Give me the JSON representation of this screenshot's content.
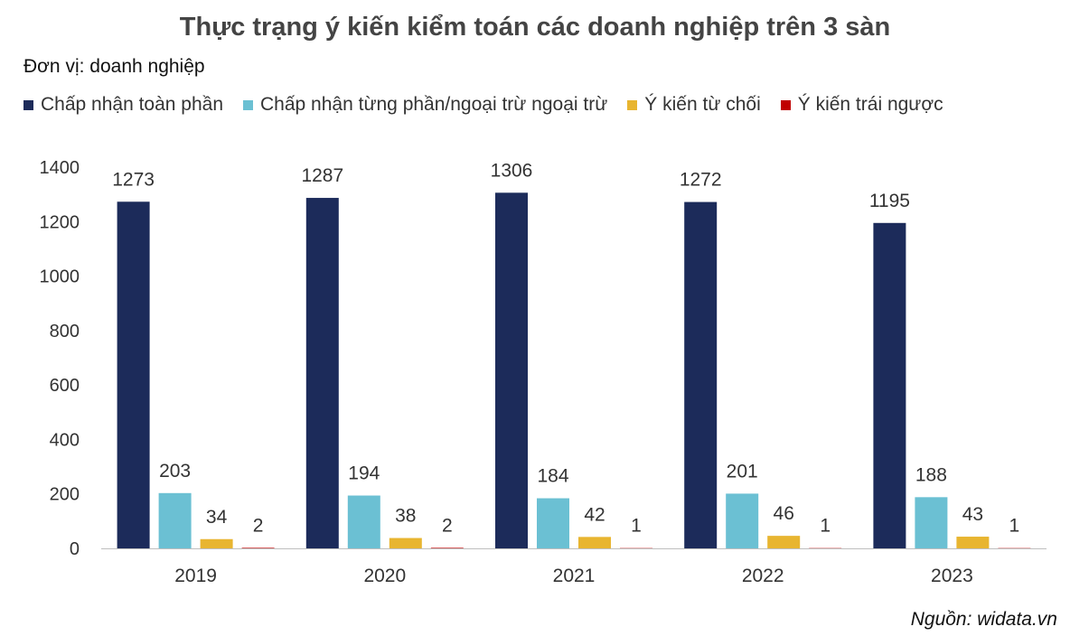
{
  "title": "Thực trạng ý kiến kiểm toán các doanh nghiệp trên 3 sàn",
  "unit_label": "Đơn vị: doanh nghiệp",
  "source": "Nguồn: widata.vn",
  "colors": {
    "full": "#1c2b5a",
    "partial": "#6bc0d3",
    "refuse": "#e8b530",
    "adverse": "#c00000",
    "axis": "#bfbfbf",
    "label": "#333333"
  },
  "chart_data": {
    "type": "bar",
    "title": "Thực trạng ý kiến kiểm toán các doanh nghiệp trên 3 sàn",
    "xlabel": "",
    "ylabel": "",
    "categories": [
      "2019",
      "2020",
      "2021",
      "2022",
      "2023"
    ],
    "ylim": [
      0,
      1400
    ],
    "yticks": [
      0,
      200,
      400,
      600,
      800,
      1000,
      1200,
      1400
    ],
    "grid": false,
    "legend_position": "top",
    "series": [
      {
        "name": "Chấp nhận toàn phần",
        "color": "#1c2b5a",
        "values": [
          1273,
          1287,
          1306,
          1272,
          1195
        ]
      },
      {
        "name": "Chấp nhận từng phần/ngoại trừ ngoại trừ",
        "color": "#6bc0d3",
        "values": [
          203,
          194,
          184,
          201,
          188
        ]
      },
      {
        "name": "Ý kiến từ chối",
        "color": "#e8b530",
        "values": [
          34,
          38,
          42,
          46,
          43
        ]
      },
      {
        "name": "Ý kiến trái ngược",
        "color": "#c00000",
        "values": [
          2,
          2,
          1,
          1,
          1
        ]
      }
    ]
  }
}
